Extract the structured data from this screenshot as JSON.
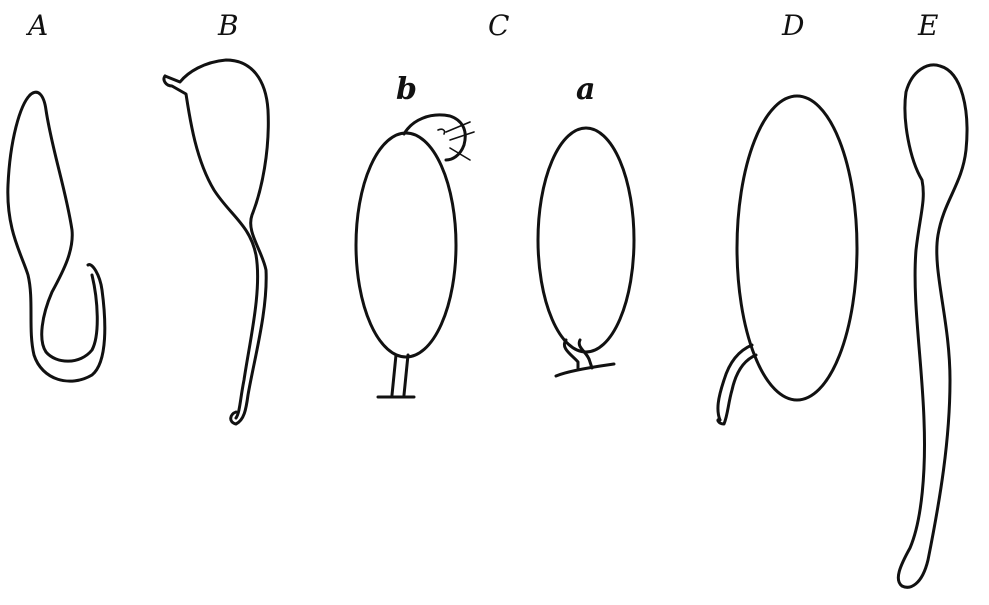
{
  "labels": {
    "A": "A",
    "B": "B",
    "C": "C",
    "D": "D",
    "E": "E",
    "b": "b",
    "a": "a"
  },
  "colors": {
    "ink": "#111111",
    "background": "#ffffff"
  }
}
